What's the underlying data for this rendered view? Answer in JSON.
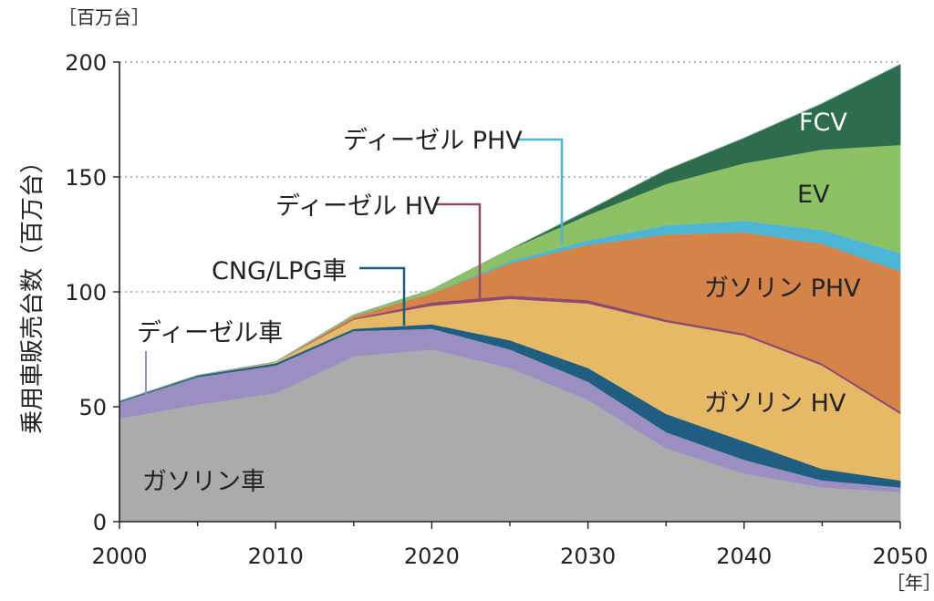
{
  "chart_data": {
    "type": "area",
    "stacked": true,
    "title": "",
    "ylabel": "乗用車販売台数（百万台）",
    "yunit": "［百万台］",
    "xunit": "［年］",
    "ylim": [
      0,
      200
    ],
    "xlim": [
      2000,
      2050
    ],
    "yticks": [
      "0",
      "50",
      "100",
      "150",
      "200"
    ],
    "xticks": [
      "2000",
      "2010",
      "2020",
      "2030",
      "2040",
      "2050"
    ],
    "grid": "horizontal dotted",
    "x": [
      2000,
      2005,
      2010,
      2015,
      2020,
      2025,
      2030,
      2035,
      2040,
      2045,
      2050
    ],
    "series": [
      {
        "name": "ガソリン車",
        "color": "#a9abad",
        "values": [
          45,
          51,
          56,
          72,
          75,
          67,
          53,
          32,
          21,
          15,
          13
        ]
      },
      {
        "name": "ディーゼル車",
        "color": "#9a8fc0",
        "values": [
          7,
          12,
          12,
          11,
          9,
          8,
          8,
          7,
          6,
          3,
          2
        ]
      },
      {
        "name": "CNG/LPG車",
        "color": "#1f5e80",
        "values": [
          0.5,
          0.7,
          1,
          1,
          2,
          4,
          6,
          8,
          8,
          5,
          3
        ]
      },
      {
        "name": "ガソリン HV",
        "color": "#e6b966",
        "values": [
          0,
          0,
          0.5,
          4,
          8,
          18,
          28,
          40,
          46,
          45,
          29
        ]
      },
      {
        "name": "ディーゼル HV",
        "color": "#8f4a6e",
        "values": [
          0,
          0,
          0,
          0.5,
          1.5,
          1.5,
          1.5,
          1,
          1,
          1,
          1
        ]
      },
      {
        "name": "ガソリン PHV",
        "color": "#d48448",
        "values": [
          0,
          0,
          0,
          1,
          4,
          14,
          24,
          37,
          44,
          52,
          61
        ]
      },
      {
        "name": "ディーゼル PHV",
        "color": "#4cb6d4",
        "values": [
          0,
          0,
          0,
          0,
          0,
          1,
          2,
          4,
          5,
          6,
          8
        ]
      },
      {
        "name": "EV",
        "color": "#8cc265",
        "values": [
          0,
          0,
          0,
          0.5,
          1.5,
          5,
          11,
          18,
          25,
          35,
          47
        ]
      },
      {
        "name": "FCV",
        "color": "#2d6d4d",
        "values": [
          0,
          0,
          0,
          0,
          0,
          0,
          2,
          6,
          11,
          20,
          35
        ]
      }
    ],
    "callouts": {
      "diesel_car": "ディーゼル車",
      "cng_lpg": "CNG/LPG車",
      "diesel_hv": "ディーゼル HV",
      "diesel_phv": "ディーゼル PHV"
    },
    "inline_labels": {
      "fcv": "FCV",
      "ev": "EV",
      "gas_phv": "ガソリン PHV",
      "gas_hv": "ガソリン HV",
      "gas_car": "ガソリン車"
    }
  }
}
